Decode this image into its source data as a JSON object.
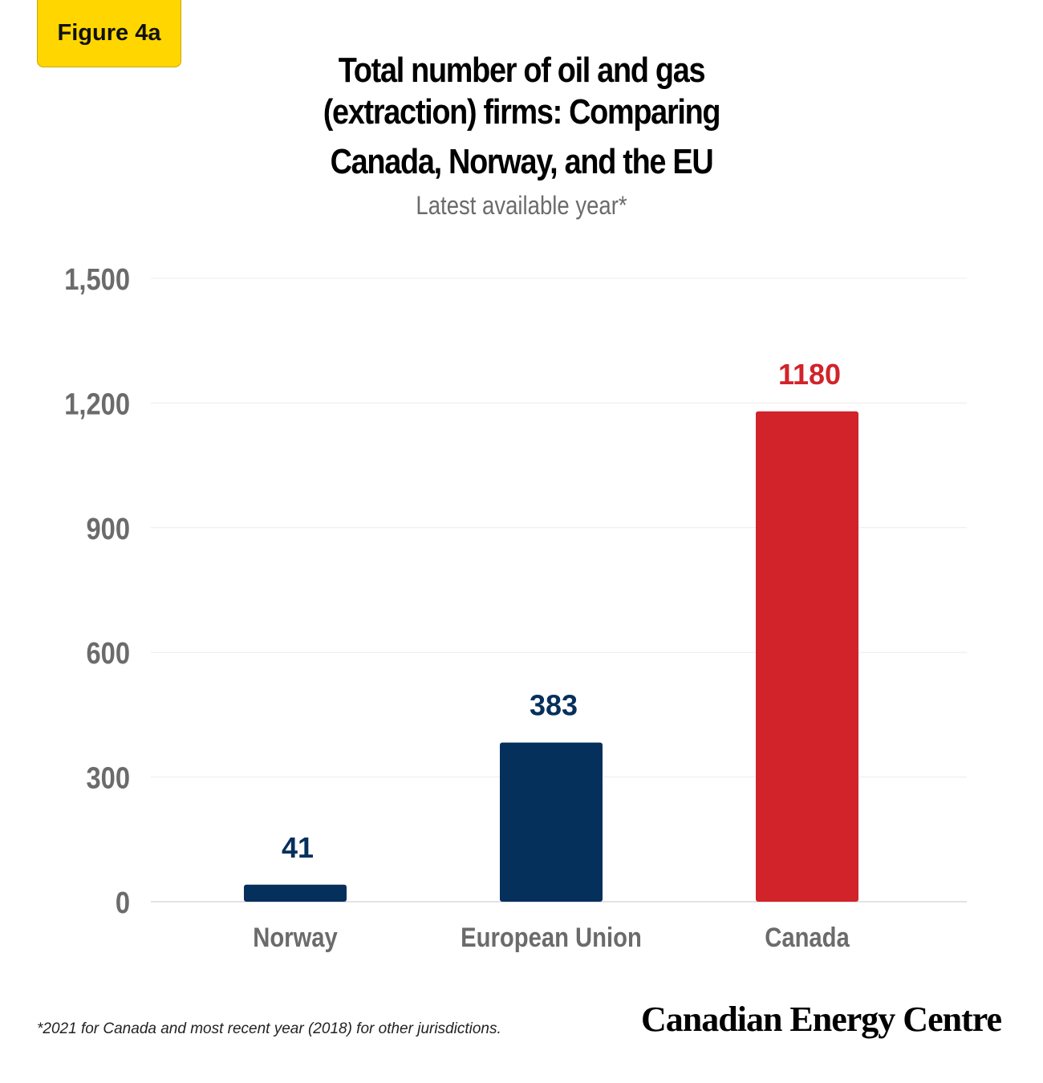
{
  "badge": "Figure 4a",
  "chart_data": {
    "type": "bar",
    "title": "Total number of oil and gas (extraction) firms: Comparing Canada, Norway, and the EU",
    "title_lines": [
      "Total number of oil and gas",
      "(extraction) firms: Comparing",
      "Canada, Norway, and the EU"
    ],
    "subtitle": "Latest available year*",
    "categories": [
      "Norway",
      "European Union",
      "Canada"
    ],
    "values": [
      41,
      383,
      1180
    ],
    "data_labels": [
      "41",
      "383",
      "1180"
    ],
    "ylim": [
      0,
      1500
    ],
    "yticks": [
      0,
      300,
      600,
      900,
      1200,
      1500
    ],
    "ytick_labels": [
      "0",
      "300",
      "600",
      "900",
      "1,200",
      "1,500"
    ],
    "xlabel": "",
    "ylabel": "",
    "grid": true,
    "colors": [
      "#06305c",
      "#06305c",
      "#d2232a"
    ]
  },
  "footnote": "*2021 for Canada and most recent year (2018) for other jurisdictions.",
  "brand": "Canadian Energy Centre"
}
